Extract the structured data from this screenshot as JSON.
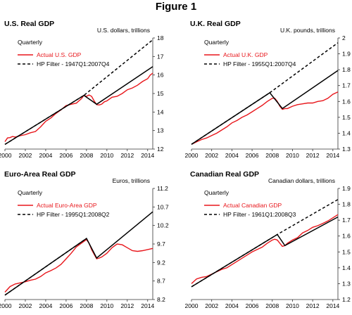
{
  "figure_title": "Figure 1",
  "colors": {
    "actual": "#e8161b",
    "trend": "#000000",
    "axis": "#333333"
  },
  "chart_data": [
    {
      "type": "line",
      "title": "U.S. Real GDP",
      "unit_label": "U.S. dollars, trillions",
      "note": "Quarterly",
      "legend_placement": "top-left",
      "xlim": [
        2000,
        2014.5
      ],
      "ylim": [
        12,
        18
      ],
      "x_ticks": [
        2000,
        2002,
        2004,
        2006,
        2008,
        2010,
        2012,
        2014
      ],
      "y_ticks": [
        12,
        13,
        14,
        15,
        16,
        17,
        18
      ],
      "grid": false,
      "series": [
        {
          "name": "Actual U.S. GDP",
          "style": "solid",
          "color": "#e8161b",
          "x": [
            2000.0,
            2000.25,
            2000.5,
            2000.75,
            2001.0,
            2001.5,
            2002.0,
            2002.5,
            2003.0,
            2003.5,
            2004.0,
            2004.5,
            2005.0,
            2005.5,
            2006.0,
            2006.5,
            2007.0,
            2007.5,
            2007.75,
            2008.0,
            2008.25,
            2008.5,
            2008.75,
            2009.0,
            2009.25,
            2009.5,
            2009.75,
            2010.0,
            2010.5,
            2011.0,
            2011.5,
            2012.0,
            2012.5,
            2013.0,
            2013.5,
            2014.0,
            2014.25,
            2014.5
          ],
          "y": [
            12.4,
            12.6,
            12.62,
            12.68,
            12.65,
            12.72,
            12.78,
            12.88,
            12.95,
            13.2,
            13.5,
            13.68,
            13.92,
            14.12,
            14.35,
            14.42,
            14.48,
            14.72,
            14.9,
            14.85,
            14.92,
            14.85,
            14.6,
            14.4,
            14.38,
            14.43,
            14.55,
            14.6,
            14.8,
            14.85,
            15.0,
            15.2,
            15.3,
            15.45,
            15.65,
            15.8,
            16.0,
            16.1
          ]
        },
        {
          "name": "HP Filter - 1947Q1:2007Q4",
          "style": "dashed",
          "color": "#000000",
          "x": [
            2000.0,
            2007.75,
            2014.5
          ],
          "y": [
            12.25,
            14.9,
            17.9
          ]
        },
        {
          "name": "",
          "style": "solid",
          "color": "#000000",
          "x": [
            2000.0,
            2007.75,
            2009.0,
            2014.5
          ],
          "y": [
            12.25,
            14.9,
            14.42,
            16.45
          ]
        }
      ]
    },
    {
      "type": "line",
      "title": "U.K. Real GDP",
      "unit_label": "U.K. pounds, trillions",
      "note": "Quarterly",
      "legend_placement": "top-left",
      "xlim": [
        2000,
        2014.5
      ],
      "ylim": [
        1.3,
        2.0
      ],
      "x_ticks": [
        2000,
        2002,
        2004,
        2006,
        2008,
        2010,
        2012,
        2014
      ],
      "y_ticks": [
        1.3,
        1.4,
        1.5,
        1.6,
        1.7,
        1.8,
        1.9,
        2.0
      ],
      "grid": false,
      "series": [
        {
          "name": "Actual U.K. GDP",
          "style": "solid",
          "color": "#e8161b",
          "x": [
            2000.0,
            2000.5,
            2001.0,
            2001.5,
            2002.0,
            2002.5,
            2003.0,
            2003.5,
            2004.0,
            2004.5,
            2005.0,
            2005.5,
            2006.0,
            2006.5,
            2007.0,
            2007.5,
            2008.0,
            2008.25,
            2008.5,
            2008.75,
            2009.0,
            2009.25,
            2009.5,
            2010.0,
            2010.5,
            2011.0,
            2011.5,
            2012.0,
            2012.5,
            2013.0,
            2013.5,
            2014.0,
            2014.5
          ],
          "y": [
            1.33,
            1.345,
            1.36,
            1.37,
            1.385,
            1.4,
            1.42,
            1.44,
            1.465,
            1.48,
            1.5,
            1.515,
            1.535,
            1.555,
            1.575,
            1.6,
            1.62,
            1.62,
            1.6,
            1.57,
            1.55,
            1.555,
            1.555,
            1.57,
            1.58,
            1.585,
            1.59,
            1.59,
            1.6,
            1.605,
            1.62,
            1.645,
            1.66
          ]
        },
        {
          "name": "HP Filter - 1955Q1:2007Q4",
          "style": "dashed",
          "color": "#000000",
          "x": [
            2000.0,
            2007.75,
            2014.5
          ],
          "y": [
            1.33,
            1.655,
            1.97
          ]
        },
        {
          "name": "",
          "style": "solid",
          "color": "#000000",
          "x": [
            2000.0,
            2007.75,
            2009.0,
            2014.5
          ],
          "y": [
            1.33,
            1.655,
            1.555,
            1.795
          ]
        }
      ]
    },
    {
      "type": "line",
      "title": "Euro-Area Real GDP",
      "unit_label": "Euros, trillions",
      "note": "Quarterly",
      "legend_placement": "top-left",
      "xlim": [
        2000,
        2014.5
      ],
      "ylim": [
        8.2,
        11.2
      ],
      "x_ticks": [
        2000,
        2002,
        2004,
        2006,
        2008,
        2010,
        2012,
        2014
      ],
      "y_ticks": [
        8.2,
        8.7,
        9.2,
        9.7,
        10.2,
        10.7,
        11.2
      ],
      "grid": false,
      "series": [
        {
          "name": "Actual Euro-Area GDP",
          "style": "solid",
          "color": "#e8161b",
          "x": [
            2000.0,
            2000.5,
            2001.0,
            2001.5,
            2002.0,
            2002.5,
            2003.0,
            2003.5,
            2004.0,
            2004.5,
            2005.0,
            2005.5,
            2006.0,
            2006.5,
            2007.0,
            2007.5,
            2008.0,
            2008.25,
            2008.5,
            2008.75,
            2009.0,
            2009.25,
            2009.5,
            2010.0,
            2010.5,
            2011.0,
            2011.5,
            2012.0,
            2012.5,
            2013.0,
            2013.5,
            2014.0,
            2014.5
          ],
          "y": [
            8.4,
            8.55,
            8.62,
            8.65,
            8.68,
            8.72,
            8.75,
            8.82,
            8.92,
            8.98,
            9.05,
            9.15,
            9.3,
            9.45,
            9.62,
            9.72,
            9.82,
            9.72,
            9.55,
            9.42,
            9.3,
            9.32,
            9.35,
            9.45,
            9.6,
            9.7,
            9.68,
            9.6,
            9.52,
            9.5,
            9.52,
            9.55,
            9.58
          ]
        },
        {
          "name": "HP Filter - 1995Q1:2008Q2",
          "style": "dashed",
          "color": "#000000",
          "x": [
            2000.0,
            2008.0
          ],
          "y": [
            8.32,
            9.85
          ]
        },
        {
          "name": "",
          "style": "solid",
          "color": "#000000",
          "x": [
            2000.0,
            2008.0,
            2009.0,
            2014.5
          ],
          "y": [
            8.32,
            9.85,
            9.32,
            10.57
          ]
        }
      ]
    },
    {
      "type": "line",
      "title": "Canadian Real GDP",
      "unit_label": "Canadian dollars, trillions",
      "note": "Quarterly",
      "legend_placement": "top-left",
      "xlim": [
        2000,
        2014.5
      ],
      "ylim": [
        1.2,
        1.9
      ],
      "x_ticks": [
        2000,
        2002,
        2004,
        2006,
        2008,
        2010,
        2012,
        2014
      ],
      "y_ticks": [
        1.2,
        1.3,
        1.4,
        1.5,
        1.6,
        1.7,
        1.8,
        1.9
      ],
      "grid": false,
      "series": [
        {
          "name": "Actual Canadian GDP",
          "style": "solid",
          "color": "#e8161b",
          "x": [
            2000.0,
            2000.5,
            2001.0,
            2001.5,
            2002.0,
            2002.5,
            2003.0,
            2003.5,
            2004.0,
            2004.5,
            2005.0,
            2005.5,
            2006.0,
            2006.5,
            2007.0,
            2007.5,
            2008.0,
            2008.25,
            2008.5,
            2008.75,
            2009.0,
            2009.25,
            2009.5,
            2010.0,
            2010.5,
            2011.0,
            2011.5,
            2012.0,
            2012.5,
            2013.0,
            2013.5,
            2014.0,
            2014.5
          ],
          "y": [
            1.3,
            1.33,
            1.34,
            1.345,
            1.36,
            1.375,
            1.39,
            1.4,
            1.42,
            1.44,
            1.46,
            1.48,
            1.5,
            1.515,
            1.53,
            1.555,
            1.575,
            1.58,
            1.575,
            1.555,
            1.535,
            1.54,
            1.555,
            1.575,
            1.59,
            1.62,
            1.635,
            1.655,
            1.665,
            1.68,
            1.695,
            1.715,
            1.735
          ]
        },
        {
          "name": "HP Filter - 1961Q1:2008Q3",
          "style": "dashed",
          "color": "#000000",
          "x": [
            2000.0,
            2008.5,
            2014.5
          ],
          "y": [
            1.28,
            1.61,
            1.83
          ]
        },
        {
          "name": "",
          "style": "solid",
          "color": "#000000",
          "x": [
            2000.0,
            2008.5,
            2009.25,
            2014.5
          ],
          "y": [
            1.28,
            1.61,
            1.54,
            1.72
          ]
        }
      ]
    }
  ]
}
